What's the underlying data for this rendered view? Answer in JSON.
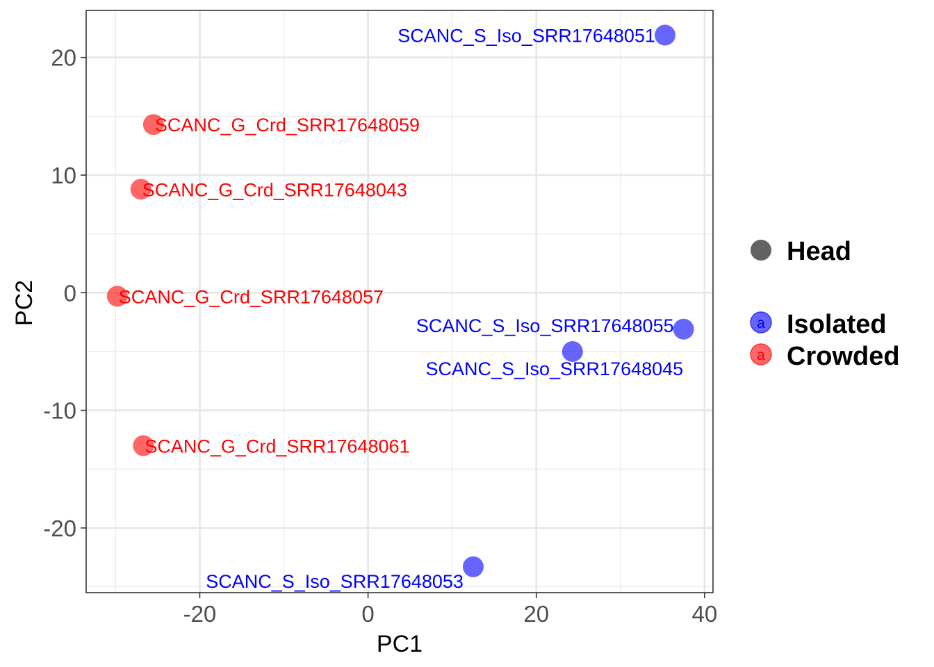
{
  "chart_data": {
    "type": "scatter",
    "title": "",
    "xlabel": "PC1",
    "ylabel": "PC2",
    "xlim": [
      -33.5,
      41
    ],
    "ylim": [
      -25.5,
      24
    ],
    "x_ticks": [
      -20,
      0,
      20,
      40
    ],
    "y_ticks": [
      -20,
      -10,
      0,
      10,
      20
    ],
    "x_tick_labels": [
      "-20",
      "0",
      "20",
      "40"
    ],
    "y_tick_labels": [
      "-20",
      "-10",
      "0",
      "10",
      "20"
    ],
    "grid": true,
    "legend_position": "right",
    "legend": {
      "shape_title": "Head",
      "groups": [
        {
          "name": "Isolated",
          "color": "#0000ff",
          "key_glyph": "a"
        },
        {
          "name": "Crowded",
          "color": "#ff0000",
          "key_glyph": "a"
        }
      ]
    },
    "series": [
      {
        "name": "Isolated",
        "color": "#0000ff",
        "points": [
          {
            "x": 35.3,
            "y": 21.9,
            "label": "SCANC_S_Iso_SRR17648051",
            "anchor": "end"
          },
          {
            "x": 37.5,
            "y": -3.1,
            "label": "SCANC_S_Iso_SRR17648055",
            "anchor": "end"
          },
          {
            "x": 24.3,
            "y": -5.0,
            "label": "SCANC_S_Iso_SRR17648045",
            "anchor": "middle"
          },
          {
            "x": 12.5,
            "y": -23.3,
            "label": "SCANC_S_Iso_SRR17648053",
            "anchor": "end"
          }
        ]
      },
      {
        "name": "Crowded",
        "color": "#ff0000",
        "points": [
          {
            "x": -25.5,
            "y": 14.3,
            "label": "SCANC_G_Crd_SRR17648059",
            "anchor": "start"
          },
          {
            "x": -27.0,
            "y": 8.8,
            "label": "SCANC_G_Crd_SRR17648043",
            "anchor": "start"
          },
          {
            "x": -29.8,
            "y": -0.3,
            "label": "SCANC_G_Crd_SRR17648057",
            "anchor": "start"
          },
          {
            "x": -26.7,
            "y": -13.0,
            "label": "SCANC_G_Crd_SRR17648061",
            "anchor": "start"
          }
        ]
      }
    ]
  }
}
